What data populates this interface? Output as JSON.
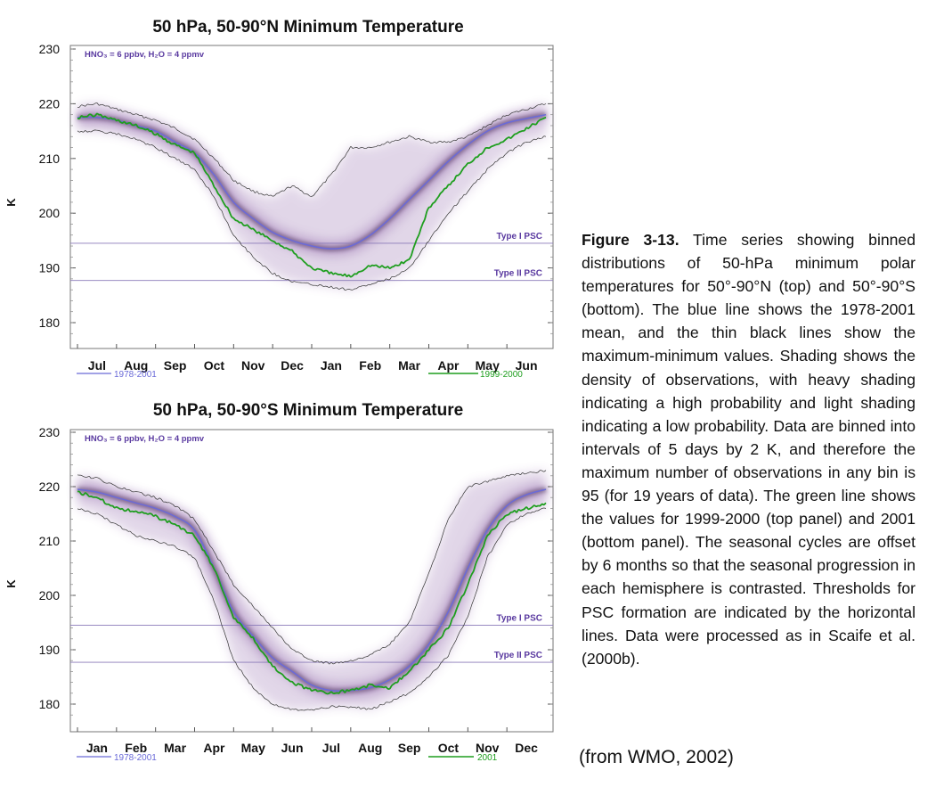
{
  "figure": {
    "caption_label": "Figure 3-13.",
    "caption_text": "Time series showing binned distributions of 50-hPa minimum polar temperatures for 50°-90°N (top) and 50°-90°S (bottom). The blue line shows the 1978-2001 mean, and the thin black lines show the maximum-minimum values. Shading shows the density of observations, with heavy shading indicating a high probability and light shading indicating a low probability. Data are binned into intervals of 5 days by 2 K, and therefore the maximum number of observations in any bin is 95 (for 19 years of data). The green line shows the values for 1999-2000 (top panel) and 2001 (bottom panel). The seasonal cycles are offset by 6 months so that the seasonal progression in each hemisphere is contrasted. Thresholds for PSC formation are indicated by the horizontal lines. Data were processed as in Scaife et al. (2000b).",
    "source": "(from WMO, 2002)"
  },
  "colors": {
    "mean_line": "#6a6ad8",
    "green_line": "#1e9e1e",
    "max_min_line": "#333333",
    "threshold_line": "#8a7ab8",
    "annotation_text": "#5a3aa0",
    "shading": "#7a4a9a"
  },
  "chart_data": [
    {
      "type": "line",
      "title": "50 hPa, 50-90°N Minimum Temperature",
      "annotation": "HNO₃ = 6 ppbv, H₂O = 4 ppmv",
      "ylabel": "K",
      "ylim": [
        178,
        231
      ],
      "yticks": [
        180,
        190,
        200,
        210,
        220,
        230
      ],
      "categories": [
        "Jul",
        "Aug",
        "Sep",
        "Oct",
        "Nov",
        "Dec",
        "Jan",
        "Feb",
        "Mar",
        "Apr",
        "May",
        "Jun"
      ],
      "thresholds": [
        {
          "name": "Type I PSC",
          "value": 194.5
        },
        {
          "name": "Type II PSC",
          "value": 187.7
        }
      ],
      "legend": {
        "left": "1978-2001",
        "right": "1999-2000"
      },
      "x": [
        0,
        0.5,
        1,
        1.5,
        2,
        2.5,
        3,
        3.5,
        4,
        4.5,
        5,
        5.5,
        6,
        6.5,
        7,
        7.5,
        8,
        8.5,
        9,
        9.5,
        10,
        10.5,
        11,
        11.5,
        12
      ],
      "series": [
        {
          "name": "1978-2001",
          "role": "mean",
          "values": [
            217.5,
            217.5,
            217,
            216,
            215,
            213,
            211,
            207,
            202,
            199,
            196.5,
            195,
            194,
            193.5,
            194,
            196,
            199,
            202.5,
            206,
            209.5,
            212.5,
            215,
            216.5,
            217.3,
            218
          ]
        },
        {
          "name": "1999-2000",
          "role": "highlight",
          "values": [
            217.5,
            218,
            217,
            216,
            214.5,
            212.5,
            211,
            205,
            199,
            197,
            195,
            193,
            190,
            189,
            188.5,
            190.5,
            190,
            191.5,
            201,
            205,
            209,
            212,
            213.5,
            215.5,
            217.5
          ]
        },
        {
          "name": "maximum",
          "role": "max",
          "values": [
            219.5,
            220,
            219,
            218,
            217,
            215.5,
            213.5,
            210,
            206,
            204,
            203,
            205,
            203,
            207,
            212,
            212,
            213,
            214,
            213,
            213,
            214,
            216,
            218,
            219,
            220
          ]
        },
        {
          "name": "minimum",
          "role": "min",
          "values": [
            215,
            215,
            214.5,
            213.5,
            212,
            210,
            208,
            203,
            196,
            192,
            189,
            187.5,
            187,
            186.5,
            186,
            187,
            188,
            190,
            195,
            200,
            204,
            208,
            211,
            213,
            214
          ]
        }
      ]
    },
    {
      "type": "line",
      "title": "50 hPa, 50-90°S Minimum Temperature",
      "annotation": "HNO₃ = 6 ppbv, H₂O = 4 ppmv",
      "ylabel": "K",
      "ylim": [
        178,
        231
      ],
      "yticks": [
        180,
        190,
        200,
        210,
        220,
        230
      ],
      "categories": [
        "Jan",
        "Feb",
        "Mar",
        "Apr",
        "May",
        "Jun",
        "Jul",
        "Aug",
        "Sep",
        "Oct",
        "Nov",
        "Dec"
      ],
      "thresholds": [
        {
          "name": "Type I PSC",
          "value": 194.5
        },
        {
          "name": "Type II PSC",
          "value": 187.7
        }
      ],
      "legend": {
        "left": "1978-2001",
        "right": "2001"
      },
      "x": [
        0,
        0.5,
        1,
        1.5,
        2,
        2.5,
        3,
        3.5,
        4,
        4.5,
        5,
        5.5,
        6,
        6.5,
        7,
        7.5,
        8,
        8.5,
        9,
        9.5,
        10,
        10.5,
        11,
        11.5,
        12
      ],
      "series": [
        {
          "name": "1978-2001",
          "role": "mean",
          "values": [
            219.5,
            219,
            218,
            217,
            216,
            214.5,
            212,
            205,
            197,
            192.5,
            188.5,
            186,
            183.5,
            182.5,
            182.5,
            183,
            184.5,
            187,
            191,
            197,
            205,
            212,
            216.5,
            218.5,
            219.5
          ]
        },
        {
          "name": "2001",
          "role": "highlight",
          "values": [
            219,
            218,
            216,
            215.5,
            214.5,
            213,
            211,
            205,
            196,
            192,
            187,
            184,
            182.5,
            182,
            182.5,
            183.5,
            183,
            186,
            190,
            194,
            202,
            211,
            215,
            216,
            217
          ]
        },
        {
          "name": "maximum",
          "role": "max",
          "values": [
            222,
            221.5,
            220,
            219,
            218,
            216.5,
            214,
            208,
            202,
            198,
            194,
            190,
            188,
            187.5,
            188,
            189,
            191,
            195,
            204,
            214,
            220,
            221,
            222,
            222.5,
            223
          ]
        },
        {
          "name": "minimum",
          "role": "min",
          "values": [
            216,
            215,
            213,
            211,
            210,
            209,
            207,
            199,
            188,
            183,
            180,
            179,
            179,
            179.5,
            179.5,
            179,
            180.5,
            182,
            185,
            189,
            196,
            207,
            213,
            215,
            216
          ]
        }
      ]
    }
  ]
}
